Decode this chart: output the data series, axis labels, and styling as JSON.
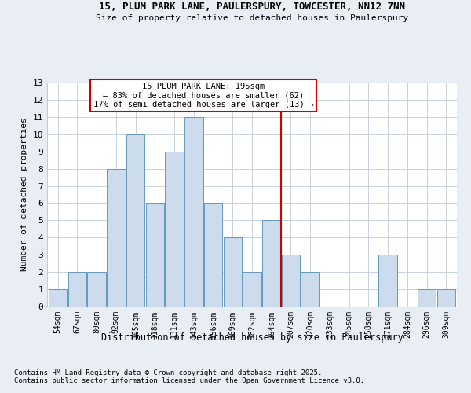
{
  "title1": "15, PLUM PARK LANE, PAULERSPURY, TOWCESTER, NN12 7NN",
  "title2": "Size of property relative to detached houses in Paulerspury",
  "xlabel": "Distribution of detached houses by size in Paulerspury",
  "ylabel": "Number of detached properties",
  "categories": [
    "54sqm",
    "67sqm",
    "80sqm",
    "92sqm",
    "105sqm",
    "118sqm",
    "131sqm",
    "143sqm",
    "156sqm",
    "169sqm",
    "182sqm",
    "194sqm",
    "207sqm",
    "220sqm",
    "233sqm",
    "245sqm",
    "258sqm",
    "271sqm",
    "284sqm",
    "296sqm",
    "309sqm"
  ],
  "values": [
    1,
    2,
    2,
    8,
    10,
    6,
    9,
    11,
    6,
    4,
    2,
    5,
    3,
    2,
    0,
    0,
    0,
    3,
    0,
    1,
    1
  ],
  "bar_color": "#ccdcec",
  "bar_edgecolor": "#6699bb",
  "highlight_line_index": 11.5,
  "highlight_box_text": "15 PLUM PARK LANE: 195sqm\n← 83% of detached houses are smaller (62)\n17% of semi-detached houses are larger (13) →",
  "highlight_box_color": "#cc0000",
  "ylim": [
    0,
    13
  ],
  "yticks": [
    0,
    1,
    2,
    3,
    4,
    5,
    6,
    7,
    8,
    9,
    10,
    11,
    12,
    13
  ],
  "footnote1": "Contains HM Land Registry data © Crown copyright and database right 2025.",
  "footnote2": "Contains public sector information licensed under the Open Government Licence v3.0.",
  "background_color": "#e8eef4",
  "plot_bg_color": "#ffffff",
  "grid_color": "#c0ccd8"
}
